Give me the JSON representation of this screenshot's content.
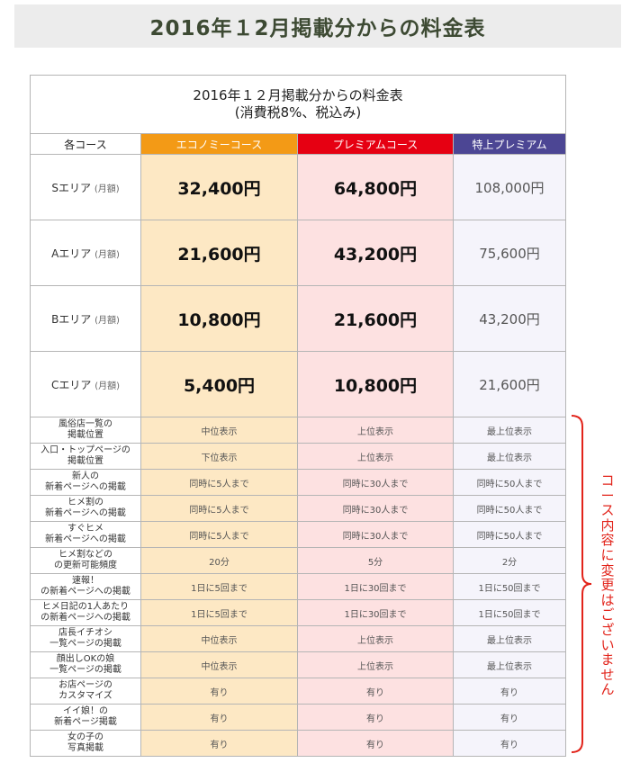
{
  "banner": {
    "title": "2016年１2月掲載分からの料金表"
  },
  "table": {
    "title_line1": "2016年１２月掲載分からの料金表",
    "title_line2": "(消費税8%、税込み)",
    "headers": {
      "course": "各コース",
      "economy": "エコノミーコース",
      "premium": "プレミアムコース",
      "top_premium": "特上プレミアム"
    },
    "header_colors": {
      "economy": "#f39a16",
      "premium": "#e60012",
      "top_premium": "#4c4694"
    },
    "areas": [
      {
        "label": "Sエリア",
        "unit": "(月額)",
        "economy": "32,400円",
        "premium": "64,800円",
        "top_premium": "108,000円"
      },
      {
        "label": "Aエリア",
        "unit": "(月額)",
        "economy": "21,600円",
        "premium": "43,200円",
        "top_premium": "75,600円"
      },
      {
        "label": "Bエリア",
        "unit": "(月額)",
        "economy": "10,800円",
        "premium": "21,600円",
        "top_premium": "43,200円"
      },
      {
        "label": "Cエリア",
        "unit": "(月額)",
        "economy": "5,400円",
        "premium": "10,800円",
        "top_premium": "21,600円"
      }
    ],
    "features": [
      {
        "label1": "風俗店一覧の",
        "label2": "掲載位置",
        "economy": "中位表示",
        "premium": "上位表示",
        "top_premium": "最上位表示"
      },
      {
        "label1": "入口・トップページの",
        "label2": "掲載位置",
        "economy": "下位表示",
        "premium": "上位表示",
        "top_premium": "最上位表示"
      },
      {
        "label1": "新人の",
        "label2": "新着ページへの掲載",
        "economy": "同時に5人まで",
        "premium": "同時に30人まで",
        "top_premium": "同時に50人まで"
      },
      {
        "label1": "ヒメ割の",
        "label2": "新着ページへの掲載",
        "economy": "同時に5人まで",
        "premium": "同時に30人まで",
        "top_premium": "同時に50人まで"
      },
      {
        "label1": "すぐヒメ",
        "label2": "新着ページへの掲載",
        "economy": "同時に5人まで",
        "premium": "同時に30人まで",
        "top_premium": "同時に50人まで"
      },
      {
        "label1": "ヒメ割などの",
        "label2": "の更新可能頻度",
        "economy": "20分",
        "premium": "5分",
        "top_premium": "2分"
      },
      {
        "label1": "速報！",
        "label2": "の新着ページへの掲載",
        "economy": "1日に5回まで",
        "premium": "1日に30回まで",
        "top_premium": "1日に50回まで"
      },
      {
        "label1": "ヒメ日記の1人あたり",
        "label2": "の新着ページへの掲載",
        "economy": "1日に5回まで",
        "premium": "1日に30回まで",
        "top_premium": "1日に50回まで"
      },
      {
        "label1": "店長イチオシ",
        "label2": "一覧ページの掲載",
        "economy": "中位表示",
        "premium": "上位表示",
        "top_premium": "最上位表示"
      },
      {
        "label1": "顔出しOKの娘",
        "label2": "一覧ページの掲載",
        "economy": "中位表示",
        "premium": "上位表示",
        "top_premium": "最上位表示"
      },
      {
        "label1": "お店ページの",
        "label2": "カスタマイズ",
        "economy": "有り",
        "premium": "有り",
        "top_premium": "有り"
      },
      {
        "label1": "イイ娘！の",
        "label2": "新着ページ掲載",
        "economy": "有り",
        "premium": "有り",
        "top_premium": "有り"
      },
      {
        "label1": "女の子の",
        "label2": "写真掲載",
        "economy": "有り",
        "premium": "有り",
        "top_premium": "有り"
      }
    ]
  },
  "side_note": {
    "text": "コース内容に変更はございません",
    "color": "#e2231a"
  }
}
